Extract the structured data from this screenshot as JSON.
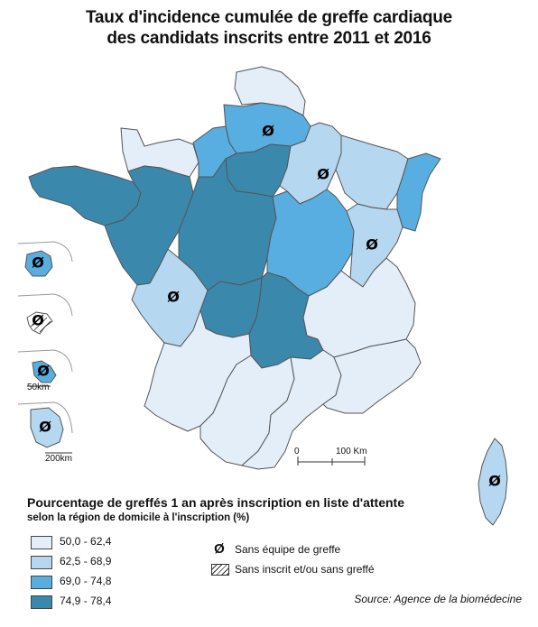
{
  "title": {
    "line1": "Taux d'incidence cumulée de greffe cardiaque",
    "line2": "des candidats inscrits entre 2011 et 2016"
  },
  "legend": {
    "heading": "Pourcentage de greffés 1 an après inscription en liste d'attente",
    "subheading": "selon la région de domicile à l'inscription (%)",
    "classes": [
      {
        "label": "50,0 - 62,4",
        "color": "#e4eef9"
      },
      {
        "label": "62,5 - 68,9",
        "color": "#b5d7ef"
      },
      {
        "label": "69,0 - 74,8",
        "color": "#58aee0"
      },
      {
        "label": "74,9 - 78,4",
        "color": "#3b88ad"
      }
    ],
    "symbols": [
      {
        "glyph": "Ø",
        "label": "Sans équipe de greffe"
      },
      {
        "label": "Sans inscrit et/ou sans greffé"
      }
    ]
  },
  "scale": {
    "zero": "0",
    "main": "100 Km",
    "inset_small": "50km",
    "inset_large": "200km"
  },
  "no_team_glyph": "Ø",
  "source": "Source: Agence de la biomédecine",
  "colors": {
    "border": "#555555",
    "background": "#ffffff"
  }
}
